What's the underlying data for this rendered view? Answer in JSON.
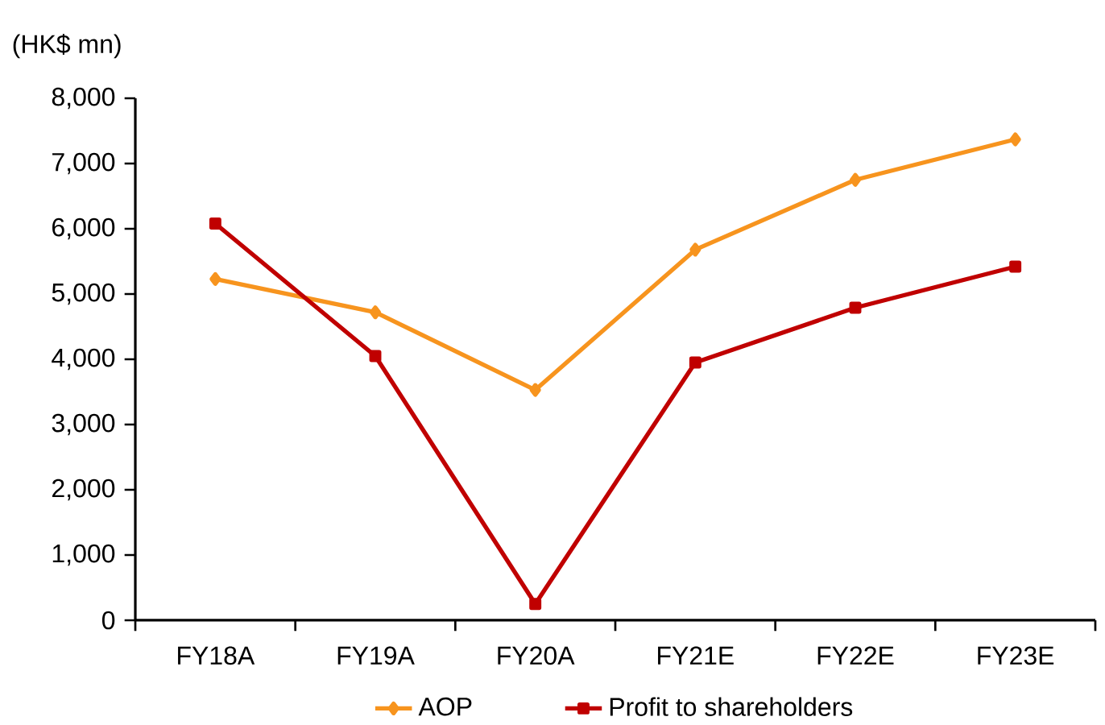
{
  "chart_data": {
    "type": "line",
    "ylabel": "(HK$ mn)",
    "categories": [
      "FY18A",
      "FY19A",
      "FY20A",
      "FY21E",
      "FY22E",
      "FY23E"
    ],
    "series": [
      {
        "name": "AOP",
        "color": "#f7941e",
        "marker": "diamond",
        "values": [
          5230,
          4720,
          3530,
          5680,
          6750,
          7370
        ]
      },
      {
        "name": "Profit to shareholders",
        "color": "#c00000",
        "marker": "square",
        "values": [
          6080,
          4050,
          250,
          3950,
          4790,
          5420
        ]
      }
    ],
    "ylim": [
      0,
      8000
    ],
    "yticks": [
      {
        "value": 0,
        "label": "0"
      },
      {
        "value": 1000,
        "label": "1,000"
      },
      {
        "value": 2000,
        "label": "2,000"
      },
      {
        "value": 3000,
        "label": "3,000"
      },
      {
        "value": 4000,
        "label": "4,000"
      },
      {
        "value": 5000,
        "label": "5,000"
      },
      {
        "value": 6000,
        "label": "6,000"
      },
      {
        "value": 7000,
        "label": "7,000"
      },
      {
        "value": 8000,
        "label": "8,000"
      }
    ],
    "legend": "bottom"
  }
}
